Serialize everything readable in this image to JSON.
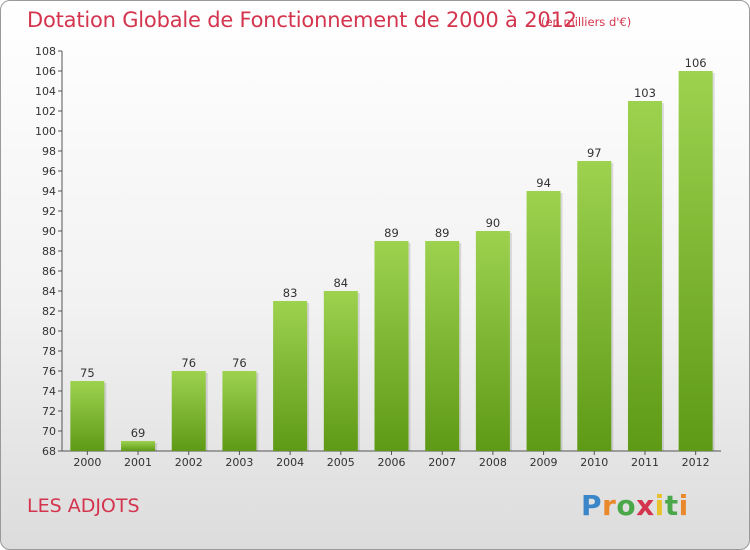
{
  "header": {
    "title": "Dotation Globale de Fonctionnement de 2000 à 2012",
    "subtitle": "(en milliers d'€)"
  },
  "footer": {
    "commune": "LES ADJOTS",
    "logo_text": "Proxiti"
  },
  "colors": {
    "title": "#d4354e",
    "bar_light": "#9dd24f",
    "bar_dark": "#5e9a16"
  },
  "chart_data": {
    "type": "bar",
    "title": "Dotation Globale de Fonctionnement de 2000 à 2012",
    "subtitle": "(en milliers d'€)",
    "categories": [
      "2000",
      "2001",
      "2002",
      "2003",
      "2004",
      "2005",
      "2006",
      "2007",
      "2008",
      "2009",
      "2010",
      "2011",
      "2012"
    ],
    "values": [
      75,
      69,
      76,
      76,
      83,
      84,
      89,
      89,
      90,
      94,
      97,
      103,
      106
    ],
    "ylim": [
      68,
      108
    ],
    "y_tick_step": 2,
    "grid": false,
    "xlabel": "",
    "ylabel": ""
  }
}
